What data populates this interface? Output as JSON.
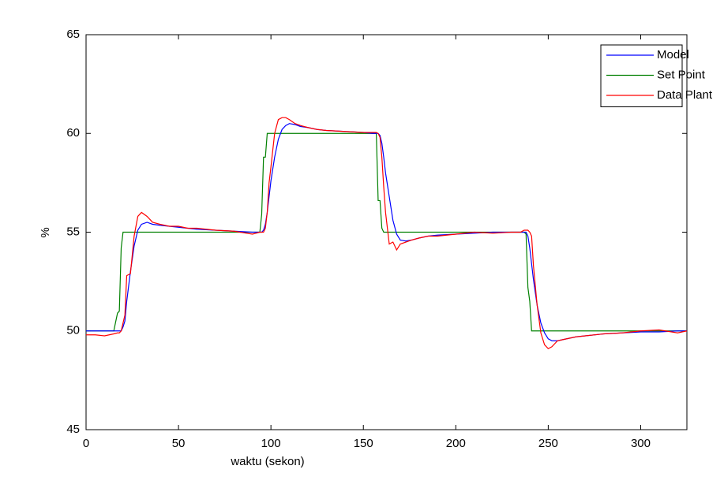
{
  "chart_data": {
    "type": "line",
    "xlabel": "waktu (sekon)",
    "ylabel": "%",
    "x": [
      0,
      5,
      10,
      15,
      17,
      18,
      19,
      20,
      21,
      22,
      24,
      26,
      28,
      30,
      33,
      36,
      40,
      45,
      50,
      55,
      60,
      70,
      80,
      90,
      94,
      95,
      96,
      97,
      98,
      99,
      100,
      102,
      104,
      106,
      108,
      110,
      113,
      116,
      120,
      125,
      130,
      140,
      150,
      155,
      157,
      158,
      159,
      160,
      161,
      162,
      164,
      166,
      168,
      170,
      173,
      176,
      180,
      185,
      190,
      200,
      210,
      220,
      230,
      235,
      237,
      238,
      239,
      240,
      241,
      242,
      244,
      246,
      248,
      250,
      252,
      255,
      260,
      265,
      270,
      280,
      290,
      300,
      310,
      320,
      325
    ],
    "series": [
      {
        "name": "Model",
        "color": "#0000ff",
        "values": [
          50,
          50,
          50,
          50,
          50,
          50,
          50,
          50.2,
          50.5,
          51.5,
          53,
          54.3,
          55.1,
          55.4,
          55.5,
          55.4,
          55.35,
          55.3,
          55.25,
          55.2,
          55.15,
          55.1,
          55.05,
          55,
          55,
          55,
          55.1,
          55.4,
          56,
          56.8,
          57.6,
          58.8,
          59.7,
          60.2,
          60.4,
          60.5,
          60.45,
          60.35,
          60.3,
          60.2,
          60.15,
          60.1,
          60.05,
          60,
          60,
          60,
          59.9,
          59.5,
          58.8,
          58,
          56.8,
          55.6,
          54.9,
          54.6,
          54.55,
          54.6,
          54.7,
          54.8,
          54.85,
          54.9,
          54.95,
          55,
          55,
          55,
          55,
          55,
          54.8,
          54.2,
          53.4,
          52.6,
          51.3,
          50.4,
          49.9,
          49.6,
          49.5,
          49.5,
          49.6,
          49.7,
          49.75,
          49.85,
          49.9,
          49.95,
          49.95,
          50,
          50
        ]
      },
      {
        "name": "Set Point",
        "color": "#008000",
        "values": [
          50,
          50,
          50,
          50,
          50.9,
          51,
          54.2,
          55,
          55,
          55,
          55,
          55,
          55,
          55,
          55,
          55,
          55,
          55,
          55,
          55,
          55,
          55,
          55,
          55,
          55,
          55.9,
          58.8,
          58.8,
          60,
          60,
          60,
          60,
          60,
          60,
          60,
          60,
          60,
          60,
          60,
          60,
          60,
          60,
          60,
          60,
          60,
          56.6,
          56.6,
          55.2,
          55,
          55,
          55,
          55,
          55,
          55,
          55,
          55,
          55,
          55,
          55,
          55,
          55,
          55,
          55,
          55,
          55,
          54.9,
          52.2,
          51.5,
          50,
          50,
          50,
          50,
          50,
          50,
          50,
          50,
          50,
          50,
          50,
          50,
          50,
          50,
          50,
          50,
          50
        ]
      },
      {
        "name": "Data Plant",
        "color": "#ff0000",
        "values": [
          49.8,
          49.8,
          49.75,
          49.85,
          49.9,
          49.9,
          50,
          50.4,
          50.8,
          52.8,
          52.9,
          54.8,
          55.8,
          56,
          55.8,
          55.5,
          55.4,
          55.3,
          55.3,
          55.2,
          55.2,
          55.1,
          55.05,
          54.9,
          55,
          55,
          55,
          55.2,
          56,
          57.5,
          58.3,
          60,
          60.7,
          60.8,
          60.8,
          60.7,
          60.5,
          60.4,
          60.3,
          60.2,
          60.15,
          60.1,
          60.05,
          60.05,
          60.05,
          60,
          59.8,
          58.8,
          57.3,
          56,
          54.4,
          54.5,
          54.1,
          54.4,
          54.5,
          54.6,
          54.7,
          54.8,
          54.8,
          54.9,
          55,
          54.95,
          55,
          55,
          55.1,
          55.1,
          55.1,
          55,
          54.8,
          53.3,
          51.3,
          49.9,
          49.3,
          49.1,
          49.2,
          49.5,
          49.6,
          49.7,
          49.75,
          49.85,
          49.9,
          50,
          50.05,
          49.9,
          50
        ]
      }
    ],
    "xlim": [
      0,
      325
    ],
    "ylim": [
      45,
      65
    ],
    "xticks": [
      0,
      50,
      100,
      150,
      200,
      250,
      300
    ],
    "yticks": [
      45,
      50,
      55,
      60,
      65
    ],
    "legend": "top-right"
  }
}
